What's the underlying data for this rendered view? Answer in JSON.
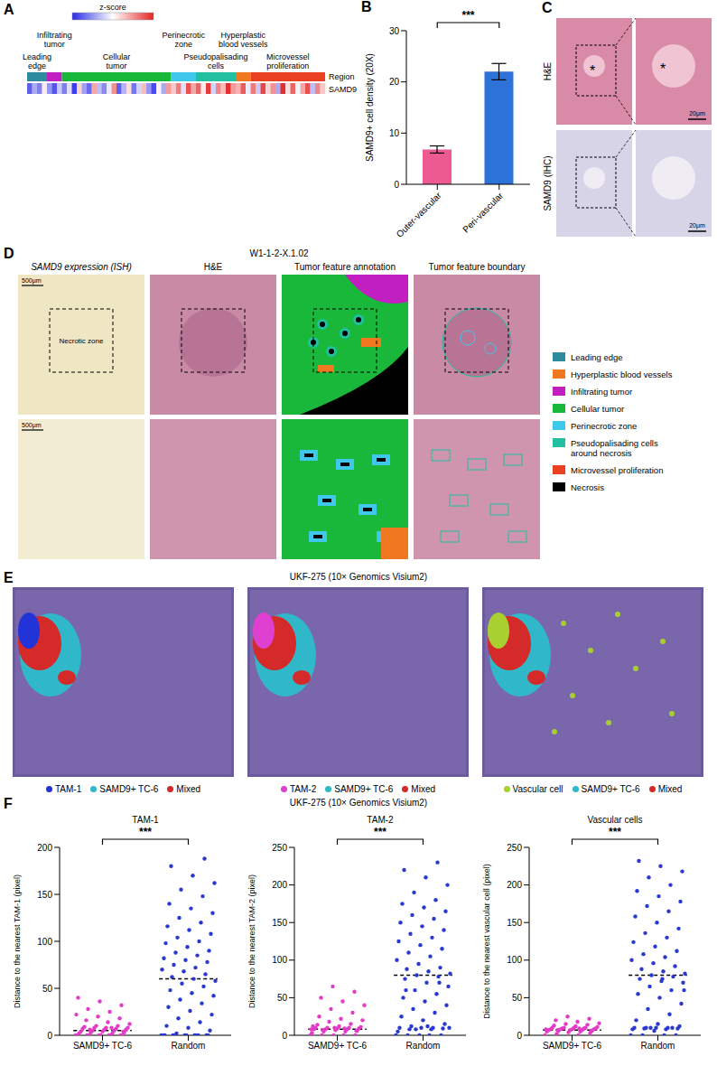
{
  "chart_data": [
    {
      "panel": "B",
      "type": "bar",
      "categories": [
        "Outer-vascular",
        "Peri-vascular"
      ],
      "values": [
        6.8,
        22.0
      ],
      "errors": [
        0.7,
        1.6
      ],
      "colors": [
        "#ec5a91",
        "#2d72d9"
      ],
      "y_label": "SAMD9+ cell density (20X)",
      "ylim": [
        0,
        30
      ],
      "yticks": [
        0,
        10,
        20,
        30
      ],
      "annotation": "***"
    },
    {
      "type": "scatter",
      "title": "TAM-1",
      "categories": [
        "SAMD9+ TC-6",
        "Random"
      ],
      "colors": [
        "#e23cc6",
        "#2838d0"
      ],
      "values": [
        [
          0,
          0,
          0,
          0,
          0,
          0,
          0,
          0,
          0,
          0,
          2,
          2,
          3,
          3,
          4,
          4,
          5,
          5,
          6,
          6,
          7,
          7,
          8,
          8,
          8,
          9,
          10,
          10,
          12,
          14,
          16,
          18,
          20,
          22,
          25,
          28,
          32,
          36,
          40,
          8,
          6,
          4
        ],
        [
          0,
          0,
          0,
          0,
          0,
          0,
          0,
          0,
          0,
          0,
          0,
          0,
          2,
          5,
          8,
          10,
          14,
          18,
          22,
          26,
          30,
          34,
          38,
          42,
          45,
          48,
          52,
          55,
          58,
          60,
          62,
          65,
          68,
          70,
          72,
          75,
          78,
          80,
          82,
          85,
          88,
          90,
          94,
          98,
          100,
          104,
          108,
          112,
          116,
          120,
          125,
          130,
          135,
          140,
          148,
          155,
          162,
          170,
          180,
          188
        ]
      ],
      "means": [
        5,
        60
      ],
      "y_label": "Distance to the nearest TAM-1 (pixel)",
      "ylim": [
        0,
        200
      ],
      "yticks": [
        0,
        50,
        100,
        150,
        200
      ],
      "annotation": "***"
    },
    {
      "type": "scatter",
      "title": "TAM-2",
      "categories": [
        "SAMD9+ TC-6",
        "Random"
      ],
      "colors": [
        "#e23cc6",
        "#2838d0"
      ],
      "values": [
        [
          0,
          0,
          0,
          0,
          0,
          3,
          5,
          5,
          6,
          7,
          8,
          8,
          8,
          9,
          9,
          10,
          10,
          10,
          11,
          12,
          14,
          15,
          18,
          20,
          22,
          25,
          30,
          35,
          40,
          45,
          50,
          58,
          65,
          8,
          9,
          7,
          6,
          10,
          12
        ],
        [
          0,
          0,
          0,
          0,
          0,
          5,
          8,
          8,
          9,
          10,
          10,
          10,
          12,
          15,
          20,
          25,
          30,
          35,
          40,
          45,
          50,
          55,
          60,
          65,
          70,
          75,
          78,
          80,
          82,
          85,
          88,
          90,
          95,
          100,
          105,
          110,
          115,
          120,
          125,
          130,
          135,
          140,
          145,
          150,
          155,
          160,
          165,
          170,
          175,
          180,
          190,
          200,
          210,
          220,
          230,
          8,
          10,
          12,
          60,
          70
        ]
      ],
      "means": [
        8,
        80
      ],
      "y_label": "Distance to the nearest TAM-2 (pixel)",
      "ylim": [
        0,
        250
      ],
      "yticks": [
        0,
        50,
        100,
        150,
        200,
        250
      ],
      "annotation": "***"
    },
    {
      "type": "scatter",
      "title": "Vascular cells",
      "categories": [
        "SAMD9+ TC-6",
        "Random"
      ],
      "colors": [
        "#e23cc6",
        "#2838d0"
      ],
      "values": [
        [
          0,
          0,
          2,
          3,
          4,
          5,
          5,
          6,
          6,
          7,
          7,
          7,
          8,
          8,
          8,
          8,
          9,
          9,
          9,
          10,
          10,
          10,
          10,
          11,
          12,
          13,
          14,
          15,
          16,
          18,
          20,
          22,
          25,
          8,
          9,
          7,
          6
        ],
        [
          0,
          0,
          0,
          0,
          6,
          8,
          8,
          9,
          9,
          10,
          10,
          10,
          10,
          12,
          15,
          20,
          28,
          35,
          42,
          50,
          55,
          60,
          65,
          70,
          72,
          75,
          78,
          80,
          82,
          85,
          88,
          92,
          96,
          100,
          104,
          108,
          112,
          118,
          124,
          130,
          136,
          142,
          150,
          158,
          165,
          172,
          178,
          185,
          192,
          200,
          210,
          218,
          225,
          232,
          10,
          10,
          60,
          75
        ]
      ],
      "means": [
        7,
        80
      ],
      "y_label": "Distance to the nearest vascular cell (pixel)",
      "ylim": [
        0,
        250
      ],
      "yticks": [
        0,
        50,
        100,
        150,
        200,
        250
      ],
      "annotation": "***"
    }
  ],
  "panels": {
    "A": {
      "panel": "A",
      "colorbar_label": "z-score",
      "colorbar_colors": [
        "#2a2ae6",
        "#ffffff",
        "#e42424"
      ],
      "zlim": [
        -2,
        2
      ],
      "row_labels": [
        "Region",
        "SAMD9"
      ],
      "regions": [
        {
          "name": "Leading edge",
          "color": "#2e8b9e",
          "count": 4
        },
        {
          "name": "Infiltrating tumor",
          "color": "#c21fc2",
          "count": 3
        },
        {
          "name": "Cellular tumor",
          "color": "#19b83a",
          "count": 22
        },
        {
          "name": "Perinecrotic zone",
          "color": "#40c8ec",
          "count": 5
        },
        {
          "name": "Pseudopalisading cells",
          "color": "#20c0a0",
          "count": 8
        },
        {
          "name": "Hyperplastic blood vessels",
          "color": "#f07820",
          "count": 3
        },
        {
          "name": "Microvessel proliferation",
          "color": "#e84020",
          "count": 15
        }
      ],
      "values": [
        -1.5,
        -0.8,
        -1.2,
        0.2,
        -1.0,
        -1.6,
        -0.5,
        -1.2,
        -0.3,
        -1.8,
        0.4,
        -0.9,
        -1.4,
        0.8,
        -0.6,
        -1.1,
        -0.2,
        1.0,
        -1.5,
        -0.7,
        0.3,
        -1.3,
        -0.4,
        0.6,
        -1.0,
        -1.7,
        0.1,
        -0.8,
        0.9,
        0.5,
        1.2,
        -0.3,
        1.6,
        0.8,
        1.4,
        0.2,
        1.8,
        -0.4,
        1.1,
        0.6,
        1.9,
        0.9,
        0.7,
        1.5,
        -0.2,
        1.2,
        -0.5,
        1.7,
        0.4,
        1.0,
        -0.8,
        1.9,
        0.3,
        1.4,
        -0.1,
        0.8,
        1.6,
        -0.6,
        1.1,
        0.5
      ]
    },
    "C": {
      "panel": "C",
      "row_labels": [
        "H&E",
        "SAMD9 (IHC)"
      ],
      "scale_bar": "20μm",
      "annotation": "*"
    },
    "D": {
      "panel": "D",
      "title": "W1-1-2-X.1.02",
      "columns": [
        "SAMD9 expression (ISH)",
        "H&E",
        "Tumor feature annotation",
        "Tumor feature boundary"
      ],
      "scale_bar": "500μm",
      "zone_label": "Necrotic zone",
      "legend": [
        {
          "name": "Leading edge",
          "color": "#2e8b9e"
        },
        {
          "name": "Hyperplastic blood vessels",
          "color": "#f07820"
        },
        {
          "name": "Infiltrating tumor",
          "color": "#c21fc2"
        },
        {
          "name": "Cellular tumor",
          "color": "#19b83a"
        },
        {
          "name": "Perinecrotic zone",
          "color": "#40c8ec"
        },
        {
          "name": "Pseudopalisading cells around necrosis",
          "color": "#20c0a0"
        },
        {
          "name": "Microvessel proliferation",
          "color": "#e84020"
        },
        {
          "name": "Necrosis",
          "color": "#000000"
        }
      ]
    },
    "E": {
      "panel": "E",
      "title": "UKF-275 (10× Genomics Visium2)",
      "maps": [
        {
          "legend": [
            {
              "name": "TAM-1",
              "color": "#2233d8"
            },
            {
              "name": "SAMD9+ TC-6",
              "color": "#30b8c8"
            },
            {
              "name": "Mixed",
              "color": "#d42a2a"
            }
          ]
        },
        {
          "legend": [
            {
              "name": "TAM-2",
              "color": "#e040d0"
            },
            {
              "name": "SAMD9+ TC-6",
              "color": "#30b8c8"
            },
            {
              "name": "Mixed",
              "color": "#d42a2a"
            }
          ]
        },
        {
          "legend": [
            {
              "name": "Vascular cell",
              "color": "#a8d030"
            },
            {
              "name": "SAMD9+ TC-6",
              "color": "#30b8c8"
            },
            {
              "name": "Mixed",
              "color": "#d42a2a"
            }
          ]
        }
      ]
    },
    "F": {
      "panel": "F",
      "title": "UKF-275 (10× Genomics Visium2)"
    }
  }
}
